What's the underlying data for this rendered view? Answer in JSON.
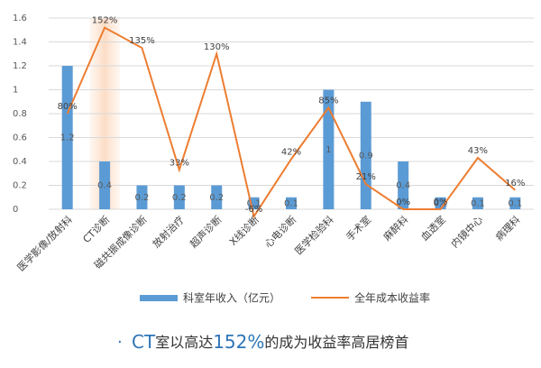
{
  "chart_data": {
    "type": "bar_line",
    "categories": [
      "医学影像/放射科",
      "CT诊断",
      "磁共振成像诊断",
      "放射治疗",
      "超声诊断",
      "X线诊断",
      "心电诊断",
      "医学检验科",
      "手术室",
      "麻醉科",
      "血透室",
      "内镜中心",
      "病理科"
    ],
    "series": [
      {
        "name": "科室年收入（亿元）",
        "color": "#5b9bd5",
        "kind": "bar",
        "values": [
          1.2,
          0.4,
          0.2,
          0.2,
          0.2,
          0.1,
          0.1,
          1,
          0.9,
          0.4,
          0.1,
          0.1,
          0.1
        ]
      },
      {
        "name": "全年成本收益率",
        "color": "#ed7d31",
        "kind": "line",
        "values": [
          0.8,
          1.52,
          1.35,
          0.33,
          1.3,
          -0.06,
          0.42,
          0.85,
          0.21,
          0,
          0,
          0.43,
          0.16
        ],
        "value_labels": [
          "80%",
          "152%",
          "135%",
          "33%",
          "130%",
          "-6%",
          "42%",
          "85%",
          "21%",
          "0%",
          "0%",
          "43%",
          "16%"
        ]
      }
    ],
    "ylim": [
      0,
      1.6
    ],
    "yticks": [
      0,
      0.2,
      0.4,
      0.6,
      0.8,
      1,
      1.2,
      1.4,
      1.6
    ],
    "grid": true,
    "annotation_parts": [
      "CT",
      "室以高达",
      "152%",
      "的成为收益率高居榜首"
    ]
  }
}
